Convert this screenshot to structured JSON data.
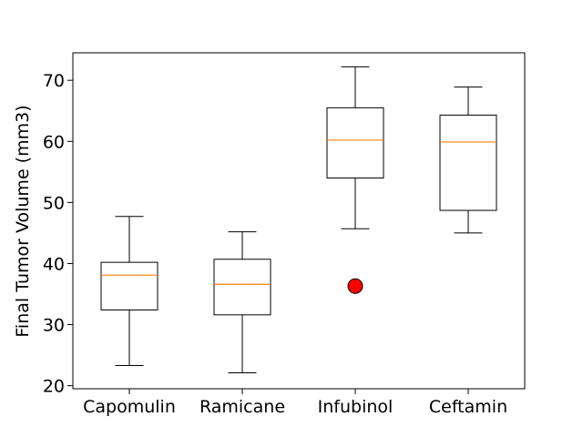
{
  "chart_data": {
    "type": "box",
    "title": "",
    "xlabel": "",
    "ylabel": "Final Tumor Volume (mm3)",
    "ylim": [
      19.5,
      74.5
    ],
    "yticks": [
      20,
      30,
      40,
      50,
      60,
      70
    ],
    "grid": false,
    "categories": [
      "Capomulin",
      "Ramicane",
      "Infubinol",
      "Ceftamin"
    ],
    "boxes": [
      {
        "category": "Capomulin",
        "whisker_low": 23.3,
        "q1": 32.4,
        "median": 38.1,
        "q3": 40.2,
        "whisker_high": 47.7,
        "outliers": []
      },
      {
        "category": "Ramicane",
        "whisker_low": 22.1,
        "q1": 31.6,
        "median": 36.6,
        "q3": 40.7,
        "whisker_high": 45.2,
        "outliers": []
      },
      {
        "category": "Infubinol",
        "whisker_low": 45.7,
        "q1": 54.0,
        "median": 60.2,
        "q3": 65.5,
        "whisker_high": 72.2,
        "outliers": [
          36.3
        ]
      },
      {
        "category": "Ceftamin",
        "whisker_low": 45.0,
        "q1": 48.7,
        "median": 59.9,
        "q3": 64.3,
        "whisker_high": 68.9,
        "outliers": []
      }
    ],
    "colors": {
      "box": "#000000",
      "median": "#ff7f0e",
      "outlier_fill": "#ff0000",
      "outlier_edge": "#000000"
    }
  }
}
